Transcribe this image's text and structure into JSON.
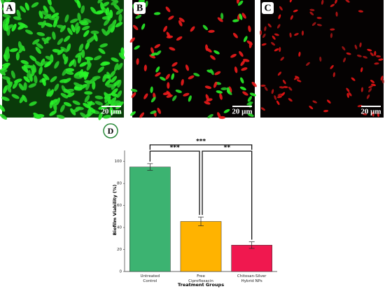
{
  "panels": [
    {
      "label": "A",
      "scale_bar": "20 μm"
    },
    {
      "label": "B",
      "scale_bar": "20 μm"
    },
    {
      "label": "C",
      "scale_bar": "20 μm"
    }
  ],
  "chart_panel_label": "D",
  "chart_data": {
    "type": "bar",
    "categories": [
      "Untreated\nControl",
      "Free\nCiprofloxacin",
      "Chitosan-Silver\nHybrid NPs"
    ],
    "values": [
      95,
      45.5,
      24
    ],
    "errors": [
      3,
      4,
      3
    ],
    "colors": [
      "#3cb371",
      "#ffb300",
      "#f0184f"
    ],
    "x_label": "Treatment Groups",
    "y_label": "Biofilm Viability (%)",
    "ylim": [
      0,
      110
    ],
    "yticks": [
      0,
      20,
      40,
      60,
      80,
      100
    ],
    "annotations": [
      "***",
      "**",
      "***"
    ]
  }
}
